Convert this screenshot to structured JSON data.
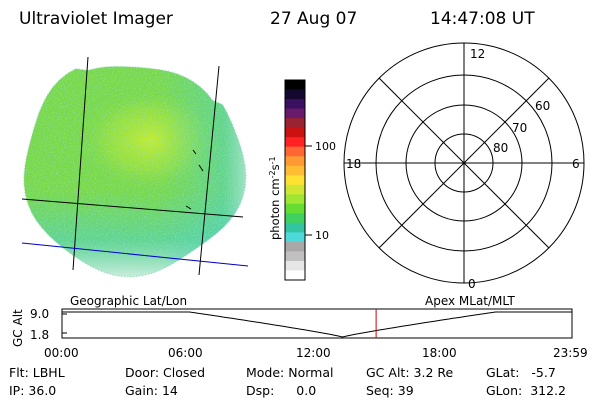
{
  "header": {
    "instrument": "Ultraviolet Imager",
    "date": "27 Aug 07",
    "time": "14:47:08 UT"
  },
  "colorbar": {
    "unit_label": "photon cm",
    "unit_exp1": "-2",
    "unit_mid": "s",
    "unit_exp2": "-1",
    "ticks": [
      "100",
      "10"
    ],
    "colors": [
      "#ffffff",
      "#e6e6e6",
      "#c0c0c0",
      "#a8a8a8",
      "#4dd9d9",
      "#33c4a0",
      "#40d060",
      "#66dd33",
      "#a0e633",
      "#d0e633",
      "#ffe033",
      "#ffbb33",
      "#ff9933",
      "#ff6633",
      "#ff2222",
      "#cc1111",
      "#992233",
      "#6a1a6a",
      "#3a1060",
      "#140830",
      "#000000"
    ]
  },
  "polar": {
    "mlt_labels": {
      "top": "12",
      "left": "18",
      "right": "6",
      "bottom": "0"
    },
    "lat_labels": [
      "60",
      "70",
      "80"
    ]
  },
  "plot_labels": {
    "left": "Geographic Lat/Lon",
    "right": "Apex MLat/MLT"
  },
  "altitude_plot": {
    "axis_title": "GC Alt",
    "y_ticks": [
      "9.0",
      "1.8"
    ],
    "x_ticks": [
      "00:00",
      "06:00",
      "12:00",
      "18:00",
      "23:59"
    ],
    "current_time_marker_color": "#cc0000"
  },
  "status": {
    "rows": [
      [
        {
          "label": "Flt:",
          "value": "LBHL"
        },
        {
          "label": "Door:",
          "value": "Closed"
        },
        {
          "label": "Mode:",
          "value": "Normal"
        },
        {
          "label": "GC Alt:",
          "value": "3.2 Re"
        },
        {
          "label": "GLat:",
          "value": "-5.7"
        }
      ],
      [
        {
          "label": "IP:",
          "value": "36.0"
        },
        {
          "label": "Gain:",
          "value": "14"
        },
        {
          "label": "Dsp:",
          "value": "0.0"
        },
        {
          "label": "Seq:",
          "value": "39"
        },
        {
          "label": "GLon:",
          "value": "312.2"
        }
      ]
    ]
  },
  "image_palette": {
    "base": "#7ad84a",
    "bright": "#b8ea3a",
    "cyan": "#4dd0c8",
    "white": "#e8f4f4"
  }
}
